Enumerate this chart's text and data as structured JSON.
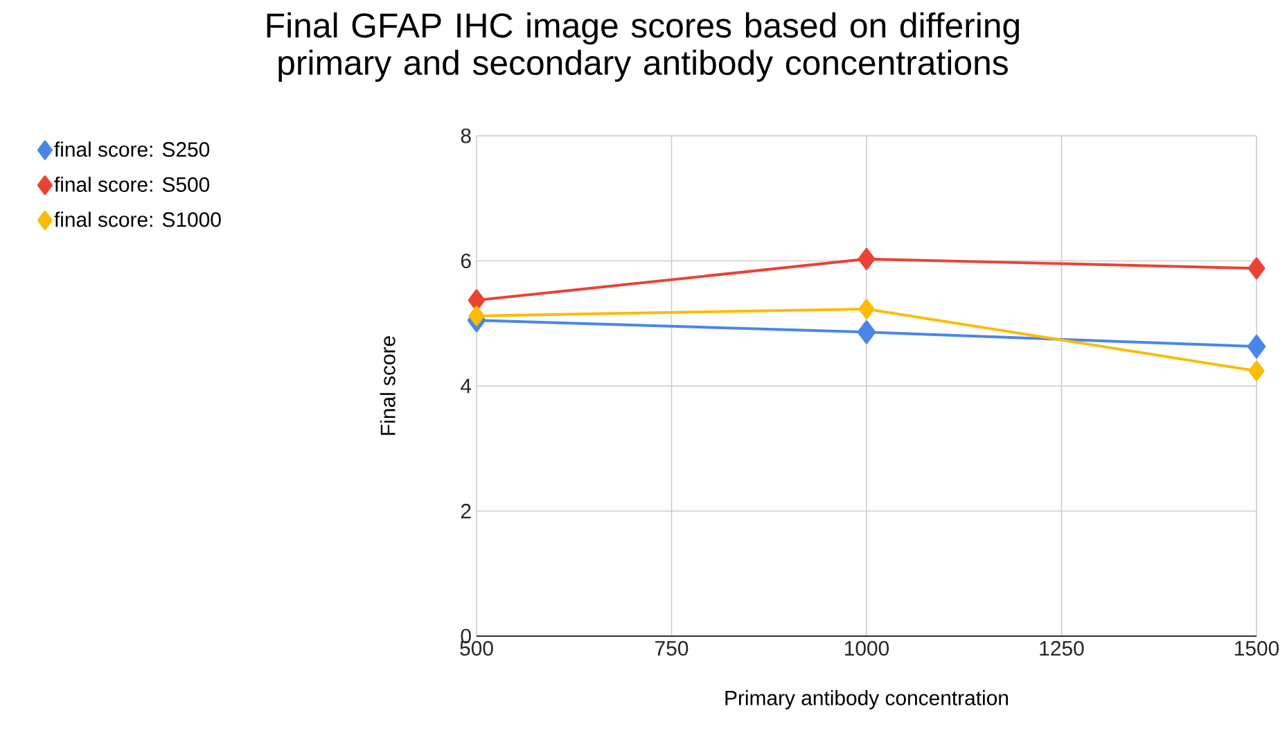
{
  "chart_data": {
    "type": "line",
    "title": "Final GFAP IHC image scores based on differing primary and secondary antibody concentrations",
    "xlabel": "Primary antibody concentration",
    "ylabel": "Final score",
    "x": [
      500,
      1000,
      1500
    ],
    "series": [
      {
        "name": "final score: S250",
        "color": "#4a86e8",
        "values": [
          5.05,
          4.86,
          4.63
        ]
      },
      {
        "name": "final score: S500",
        "color": "#ea4335",
        "values": [
          5.37,
          6.03,
          5.88
        ]
      },
      {
        "name": "final score: S1000",
        "color": "#fbbc04",
        "values": [
          5.12,
          5.23,
          4.24
        ]
      }
    ],
    "xlim": [
      500,
      1500
    ],
    "xticks": [
      500,
      750,
      1000,
      1250,
      1500
    ],
    "ylim": [
      0,
      8
    ],
    "yticks": [
      0,
      2,
      4,
      6,
      8
    ],
    "grid": true,
    "legend": "top left",
    "marker": "diamond",
    "line_style": "solid"
  }
}
